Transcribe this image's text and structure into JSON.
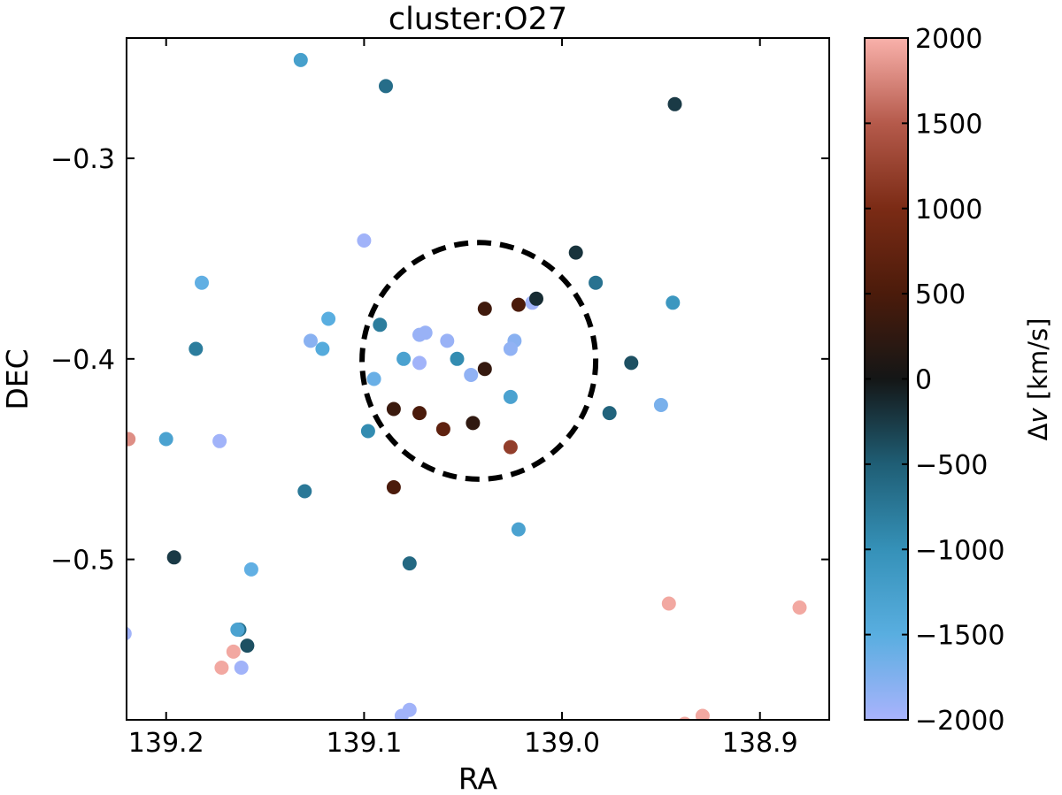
{
  "chart_data": {
    "type": "scatter",
    "title": "cluster:O27",
    "xlabel": "RA",
    "ylabel": "DEC",
    "xlim": [
      139.22,
      138.865
    ],
    "ylim": [
      -0.58,
      -0.24
    ],
    "x_inverted": true,
    "xticks": [
      139.2,
      139.1,
      139.0,
      138.9
    ],
    "xtick_labels": [
      "139.2",
      "139.1",
      "139.0",
      "138.9"
    ],
    "yticks": [
      -0.3,
      -0.4,
      -0.5
    ],
    "ytick_labels": [
      "−0.3",
      "−0.4",
      "−0.5"
    ],
    "grid": false,
    "colorbar": {
      "label": "Δv [km/s]",
      "label_symbol": "Δ",
      "label_var": "v",
      "label_unit": " [km/s]",
      "range": [
        -2000,
        2000
      ],
      "ticks": [
        2000,
        1500,
        1000,
        500,
        0,
        -500,
        -1000,
        -1500,
        -2000
      ],
      "tick_labels": [
        "2000",
        "1500",
        "1000",
        "500",
        "0",
        "−500",
        "−1000",
        "−1500",
        "−2000"
      ],
      "colormap_stops": [
        {
          "value": -2000,
          "color": "#a9b3fc"
        },
        {
          "value": -1500,
          "color": "#59aee0"
        },
        {
          "value": -1000,
          "color": "#3591b8"
        },
        {
          "value": -500,
          "color": "#1f5e75"
        },
        {
          "value": 0,
          "color": "#141616"
        },
        {
          "value": 500,
          "color": "#4b1b0b"
        },
        {
          "value": 1000,
          "color": "#7b2b15"
        },
        {
          "value": 1500,
          "color": "#b55a4b"
        },
        {
          "value": 2000,
          "color": "#f9b1ab"
        }
      ]
    },
    "circle": {
      "center_ra": 139.042,
      "center_dec": -0.401,
      "radius_deg": 0.059,
      "style": "dashed",
      "color": "#000000"
    },
    "points": [
      {
        "ra": 139.132,
        "dec": -0.251,
        "dv": -1250
      },
      {
        "ra": 139.089,
        "dec": -0.264,
        "dv": -650
      },
      {
        "ra": 138.943,
        "dec": -0.273,
        "dv": -250
      },
      {
        "ra": 139.1,
        "dec": -0.341,
        "dv": -1950
      },
      {
        "ra": 138.993,
        "dec": -0.347,
        "dv": -200
      },
      {
        "ra": 139.182,
        "dec": -0.362,
        "dv": -1550
      },
      {
        "ra": 138.983,
        "dec": -0.362,
        "dv": -700
      },
      {
        "ra": 139.015,
        "dec": -0.372,
        "dv": -1950
      },
      {
        "ra": 139.013,
        "dec": -0.37,
        "dv": -150
      },
      {
        "ra": 139.022,
        "dec": -0.373,
        "dv": 500
      },
      {
        "ra": 139.039,
        "dec": -0.375,
        "dv": 400
      },
      {
        "ra": 138.944,
        "dec": -0.372,
        "dv": -1100
      },
      {
        "ra": 139.118,
        "dec": -0.38,
        "dv": -1500
      },
      {
        "ra": 139.092,
        "dec": -0.383,
        "dv": -800
      },
      {
        "ra": 139.072,
        "dec": -0.388,
        "dv": -1900
      },
      {
        "ra": 139.069,
        "dec": -0.387,
        "dv": -1900
      },
      {
        "ra": 139.185,
        "dec": -0.395,
        "dv": -800
      },
      {
        "ra": 139.127,
        "dec": -0.391,
        "dv": -1800
      },
      {
        "ra": 139.121,
        "dec": -0.395,
        "dv": -1450
      },
      {
        "ra": 139.058,
        "dec": -0.391,
        "dv": -1900
      },
      {
        "ra": 139.024,
        "dec": -0.391,
        "dv": -1800
      },
      {
        "ra": 139.026,
        "dec": -0.395,
        "dv": -1850
      },
      {
        "ra": 139.08,
        "dec": -0.4,
        "dv": -1300
      },
      {
        "ra": 139.072,
        "dec": -0.402,
        "dv": -1950
      },
      {
        "ra": 139.053,
        "dec": -0.4,
        "dv": -950
      },
      {
        "ra": 139.039,
        "dec": -0.405,
        "dv": 300
      },
      {
        "ra": 139.046,
        "dec": -0.408,
        "dv": -1850
      },
      {
        "ra": 138.965,
        "dec": -0.402,
        "dv": -400
      },
      {
        "ra": 139.095,
        "dec": -0.41,
        "dv": -1600
      },
      {
        "ra": 139.026,
        "dec": -0.419,
        "dv": -1300
      },
      {
        "ra": 138.95,
        "dec": -0.423,
        "dv": -1700
      },
      {
        "ra": 139.085,
        "dec": -0.425,
        "dv": 350
      },
      {
        "ra": 139.072,
        "dec": -0.427,
        "dv": 500
      },
      {
        "ra": 138.976,
        "dec": -0.427,
        "dv": -550
      },
      {
        "ra": 139.06,
        "dec": -0.435,
        "dv": 700
      },
      {
        "ra": 139.045,
        "dec": -0.432,
        "dv": 250
      },
      {
        "ra": 139.098,
        "dec": -0.436,
        "dv": -950
      },
      {
        "ra": 139.219,
        "dec": -0.44,
        "dv": 1800
      },
      {
        "ra": 139.2,
        "dec": -0.44,
        "dv": -1300
      },
      {
        "ra": 139.173,
        "dec": -0.441,
        "dv": -1950
      },
      {
        "ra": 139.026,
        "dec": -0.444,
        "dv": 1200
      },
      {
        "ra": 139.085,
        "dec": -0.464,
        "dv": 500
      },
      {
        "ra": 139.13,
        "dec": -0.466,
        "dv": -750
      },
      {
        "ra": 139.022,
        "dec": -0.485,
        "dv": -1300
      },
      {
        "ra": 139.196,
        "dec": -0.499,
        "dv": -250
      },
      {
        "ra": 139.077,
        "dec": -0.502,
        "dv": -600
      },
      {
        "ra": 139.157,
        "dec": -0.505,
        "dv": -1550
      },
      {
        "ra": 138.946,
        "dec": -0.522,
        "dv": 1950
      },
      {
        "ra": 138.88,
        "dec": -0.524,
        "dv": 1950
      },
      {
        "ra": 139.221,
        "dec": -0.537,
        "dv": -1950
      },
      {
        "ra": 139.163,
        "dec": -0.535,
        "dv": -700
      },
      {
        "ra": 139.164,
        "dec": -0.535,
        "dv": -1300
      },
      {
        "ra": 139.159,
        "dec": -0.543,
        "dv": -400
      },
      {
        "ra": 139.166,
        "dec": -0.546,
        "dv": 1950
      },
      {
        "ra": 139.172,
        "dec": -0.554,
        "dv": 1950
      },
      {
        "ra": 139.162,
        "dec": -0.554,
        "dv": -1950
      },
      {
        "ra": 139.077,
        "dec": -0.575,
        "dv": -1950
      },
      {
        "ra": 139.081,
        "dec": -0.578,
        "dv": -1950
      },
      {
        "ra": 138.929,
        "dec": -0.578,
        "dv": 1950
      },
      {
        "ra": 138.938,
        "dec": -0.582,
        "dv": 1950
      }
    ]
  }
}
